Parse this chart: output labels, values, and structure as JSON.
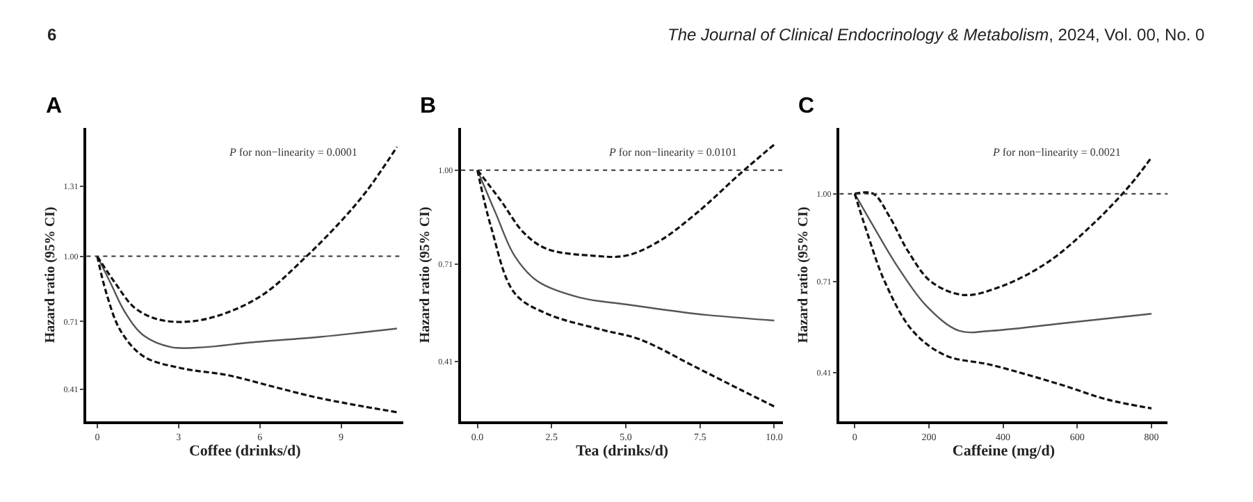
{
  "chart_data": [
    {
      "type": "line",
      "title": "A",
      "xlabel": "Coffee (drinks/d)",
      "ylabel": "Hazard ratio (95% CI)",
      "annotations": [
        "P for non−linearity = 0.0001",
        "6",
        "The Journal of Clinical Endocrinology & Metabolism, 2024, Vol. 00, No. 0"
      ],
      "xlim": [
        -0.4,
        11.3
      ],
      "xticks": [
        0,
        3,
        6,
        9
      ],
      "ylim": [
        0.265,
        1.57
      ],
      "yticks": [
        {
          "value": 0.41,
          "label": "0.41"
        },
        {
          "value": 0.71,
          "label": "0.71"
        },
        {
          "value": 1.0,
          "label": "1.00"
        },
        {
          "value": 1.31,
          "label": "1.31"
        }
      ],
      "ref_lines": [
        {
          "axis": "y",
          "value": 1.0,
          "line_style": "dotted",
          "color": "#333333"
        }
      ],
      "series": [
        {
          "color": "#555555",
          "line_style": "solid",
          "x": [
            0,
            0.51,
            1.03,
            1.71,
            2.74,
            3.94,
            5.66,
            8.23,
            11.06
          ],
          "values": [
            1.0,
            0.876,
            0.75,
            0.648,
            0.596,
            0.596,
            0.617,
            0.642,
            0.679
          ]
        },
        {
          "color": "#111111",
          "line_style": "dashed",
          "x": [
            0,
            0.69,
            1.37,
            2.23,
            3.43,
            4.8,
            6.17,
            7.54,
            8.91,
            9.94,
            11.06
          ],
          "values": [
            1.0,
            0.876,
            0.772,
            0.72,
            0.71,
            0.75,
            0.834,
            0.979,
            1.145,
            1.29,
            1.486
          ]
        },
        {
          "color": "#111111",
          "line_style": "dashed",
          "x": [
            0,
            0.34,
            0.86,
            1.71,
            3.09,
            4.8,
            6.51,
            8.23,
            11.06
          ],
          "values": [
            1.0,
            0.834,
            0.669,
            0.555,
            0.503,
            0.472,
            0.42,
            0.369,
            0.307
          ]
        }
      ]
    },
    {
      "type": "line",
      "title": "B",
      "xlabel": "Tea (drinks/d)",
      "ylabel": "Hazard ratio (95% CI)",
      "annotations": [
        "P for non−linearity = 0.0101"
      ],
      "xlim": [
        -0.55,
        10.3
      ],
      "xticks": [
        {
          "value": 0,
          "label": "0.0"
        },
        2.5,
        {
          "value": 5,
          "label": "5.0"
        },
        7.5,
        {
          "value": 10,
          "label": "10.0"
        }
      ],
      "ylim": [
        0.224,
        1.13
      ],
      "yticks": [
        {
          "value": 0.41,
          "label": "0.41"
        },
        {
          "value": 0.71,
          "label": "0.71"
        },
        {
          "value": 1.0,
          "label": "1.00"
        }
      ],
      "ref_lines": [
        {
          "axis": "y",
          "value": 1.0,
          "line_style": "dotted",
          "color": "#333333"
        }
      ],
      "series": [
        {
          "color": "#555555",
          "line_style": "solid",
          "x": [
            0,
            0.63,
            1.25,
            2.03,
            3.44,
            5.0,
            7.34,
            10
          ],
          "values": [
            1.0,
            0.864,
            0.736,
            0.657,
            0.607,
            0.586,
            0.557,
            0.536
          ]
        },
        {
          "color": "#111111",
          "line_style": "dashed",
          "x": [
            0,
            0.78,
            1.56,
            2.34,
            3.9,
            5.0,
            6.09,
            7.34,
            8.9,
            10
          ],
          "values": [
            1.0,
            0.907,
            0.807,
            0.757,
            0.736,
            0.736,
            0.779,
            0.864,
            0.993,
            1.079
          ]
        },
        {
          "color": "#111111",
          "line_style": "dashed",
          "x": [
            0,
            0.47,
            1.25,
            2.34,
            4.22,
            5.47,
            7.34,
            8.9,
            10
          ],
          "values": [
            1.0,
            0.821,
            0.621,
            0.557,
            0.507,
            0.478,
            0.393,
            0.321,
            0.271
          ]
        }
      ]
    },
    {
      "type": "line",
      "title": "C",
      "xlabel": "Caffeine (mg/d)",
      "ylabel": "Hazard ratio (95% CI)",
      "annotations": [
        "P for non−linearity = 0.0021"
      ],
      "xlim": [
        -41,
        844
      ],
      "xticks": [
        0,
        200,
        400,
        600,
        800
      ],
      "ylim": [
        0.248,
        1.217
      ],
      "yticks": [
        {
          "value": 0.41,
          "label": "0.41"
        },
        {
          "value": 0.71,
          "label": "0.71"
        },
        {
          "value": 1.0,
          "label": "1.00"
        }
      ],
      "ref_lines": [
        {
          "axis": "y",
          "value": 1.0,
          "line_style": "dotted",
          "color": "#333333"
        }
      ],
      "series": [
        {
          "color": "#555555",
          "line_style": "solid",
          "x": [
            0,
            56,
            119,
            194,
            281,
            369,
            556,
            800
          ],
          "values": [
            1.0,
            0.881,
            0.753,
            0.629,
            0.548,
            0.548,
            0.572,
            0.604
          ]
        },
        {
          "color": "#111111",
          "line_style": "dashed",
          "x": [
            0,
            50,
            94,
            144,
            206,
            294,
            394,
            519,
            644,
            744,
            800
          ],
          "values": [
            1.0,
            1.0,
            0.924,
            0.81,
            0.71,
            0.666,
            0.694,
            0.773,
            0.902,
            1.031,
            1.12
          ]
        },
        {
          "color": "#111111",
          "line_style": "dashed",
          "x": [
            0,
            31,
            81,
            156,
            244,
            369,
            556,
            681,
            800
          ],
          "values": [
            1.0,
            0.881,
            0.71,
            0.548,
            0.467,
            0.435,
            0.37,
            0.321,
            0.292
          ]
        }
      ]
    }
  ]
}
